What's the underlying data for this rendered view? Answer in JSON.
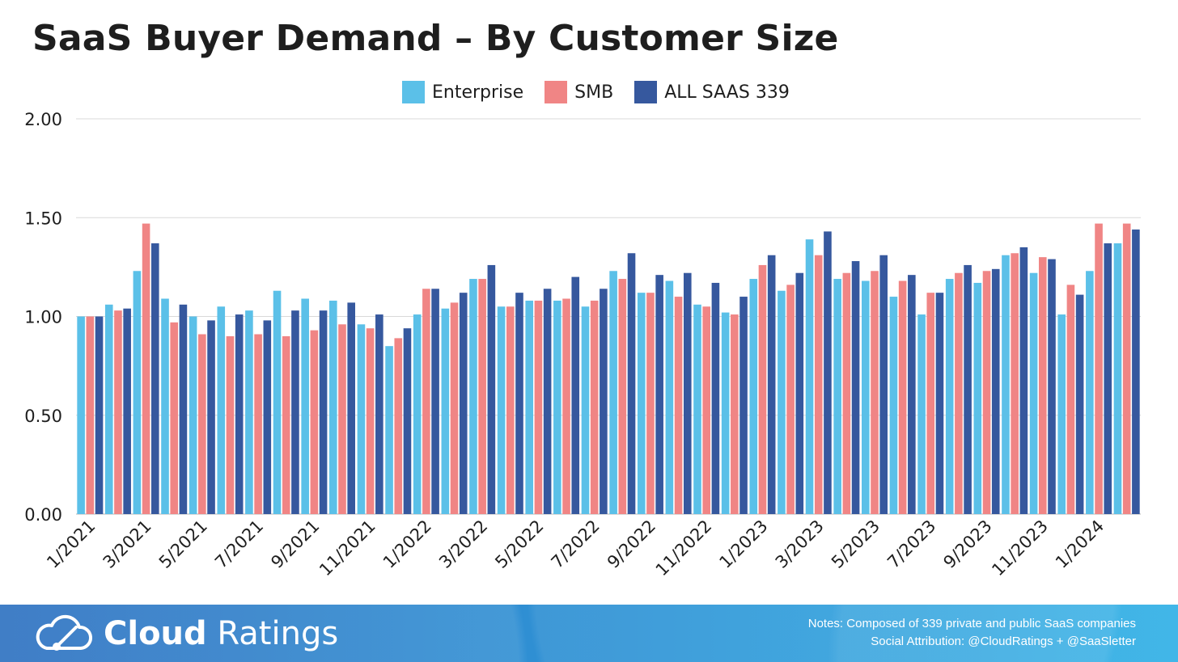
{
  "chart_data": {
    "type": "bar",
    "title": "SaaS Buyer Demand – By Customer Size",
    "ylim": [
      0,
      2
    ],
    "y_ticks": [
      "0.00",
      "0.50",
      "1.00",
      "1.50",
      "2.00"
    ],
    "grid": true,
    "legend_position": "top",
    "categories": [
      "1/2021",
      "2/2021",
      "3/2021",
      "4/2021",
      "5/2021",
      "6/2021",
      "7/2021",
      "8/2021",
      "9/2021",
      "10/2021",
      "11/2021",
      "12/2021",
      "1/2022",
      "2/2022",
      "3/2022",
      "4/2022",
      "5/2022",
      "6/2022",
      "7/2022",
      "8/2022",
      "9/2022",
      "10/2022",
      "11/2022",
      "12/2022",
      "1/2023",
      "2/2023",
      "3/2023",
      "4/2023",
      "5/2023",
      "6/2023",
      "7/2023",
      "8/2023",
      "9/2023",
      "10/2023",
      "11/2023",
      "12/2023",
      "1/2024",
      "2/2024"
    ],
    "x_tick_labels": [
      "1/2021",
      "",
      "3/2021",
      "",
      "5/2021",
      "",
      "7/2021",
      "",
      "9/2021",
      "",
      "11/2021",
      "",
      "1/2022",
      "",
      "3/2022",
      "",
      "5/2022",
      "",
      "7/2022",
      "",
      "9/2022",
      "",
      "11/2022",
      "",
      "1/2023",
      "",
      "3/2023",
      "",
      "5/2023",
      "",
      "7/2023",
      "",
      "9/2023",
      "",
      "11/2023",
      "",
      "1/2024",
      ""
    ],
    "series": [
      {
        "name": "Enterprise",
        "color": "#5bc0e8",
        "values": [
          1.0,
          1.06,
          1.23,
          1.09,
          1.0,
          1.05,
          1.03,
          1.13,
          1.09,
          1.08,
          0.96,
          0.85,
          1.01,
          1.04,
          1.19,
          1.05,
          1.08,
          1.08,
          1.05,
          1.23,
          1.12,
          1.18,
          1.06,
          1.02,
          1.19,
          1.13,
          1.39,
          1.19,
          1.18,
          1.1,
          1.01,
          1.19,
          1.17,
          1.31,
          1.22,
          1.01,
          1.23,
          1.37
        ]
      },
      {
        "name": "SMB",
        "color": "#f08585",
        "values": [
          1.0,
          1.03,
          1.47,
          0.97,
          0.91,
          0.9,
          0.91,
          0.9,
          0.93,
          0.96,
          0.94,
          0.89,
          1.14,
          1.07,
          1.19,
          1.05,
          1.08,
          1.09,
          1.08,
          1.19,
          1.12,
          1.1,
          1.05,
          1.01,
          1.26,
          1.16,
          1.31,
          1.22,
          1.23,
          1.18,
          1.12,
          1.22,
          1.23,
          1.32,
          1.3,
          1.16,
          1.47,
          1.47
        ]
      },
      {
        "name": "ALL SAAS 339",
        "color": "#36589e",
        "values": [
          1.0,
          1.04,
          1.37,
          1.06,
          0.98,
          1.01,
          0.98,
          1.03,
          1.03,
          1.07,
          1.01,
          0.94,
          1.14,
          1.12,
          1.26,
          1.12,
          1.14,
          1.2,
          1.14,
          1.32,
          1.21,
          1.22,
          1.17,
          1.1,
          1.31,
          1.22,
          1.43,
          1.28,
          1.31,
          1.21,
          1.12,
          1.26,
          1.24,
          1.35,
          1.29,
          1.11,
          1.37,
          1.44
        ]
      }
    ]
  },
  "footer": {
    "brand_bold": "Cloud",
    "brand_light": "Ratings",
    "notes_line1": "Notes: Composed of 339 private and public SaaS companies",
    "notes_line2": "Social Attribution: @CloudRatings + @SaaSletter"
  }
}
